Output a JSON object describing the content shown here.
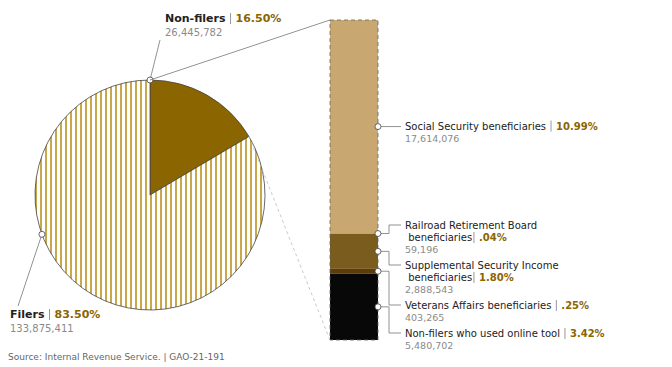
{
  "chart_data": [
    {
      "type": "pie",
      "categories": [
        "Non-filers",
        "Filers"
      ],
      "values": [
        16.5,
        83.5
      ],
      "value_labels": [
        "16.50%",
        "83.50%"
      ],
      "counts": [
        {
          "value": 26445782,
          "label": "26,445,782"
        },
        {
          "value": 133875411,
          "label": "133,875,411"
        }
      ],
      "colors": [
        "#8B6500",
        "#C8A84B"
      ],
      "data_labels": true,
      "source": "Source: Internal Revenue Service. | GAO-21-191"
    },
    {
      "type": "bar",
      "stacked": true,
      "ylim": [
        0,
        16.5
      ],
      "tick_labels": false,
      "data_labels": true,
      "series": [
        {
          "name": "Social Security beneficiaries",
          "color": "#C8A870",
          "values": [
            10.99
          ],
          "value_labels": [
            "10.99%"
          ],
          "counts": [
            {
              "value": 17614076,
              "label": "17,614,076"
            }
          ]
        },
        {
          "name": "Railroad Retirement Board beneficiaries",
          "color": "#B89A50",
          "values": [
            0.04
          ],
          "value_labels": [
            ".04%"
          ],
          "counts": [
            {
              "value": 59196,
              "label": "59,196"
            }
          ]
        },
        {
          "name": "Supplemental Security Income beneficiaries",
          "color": "#7A5C1E",
          "values": [
            1.8
          ],
          "value_labels": [
            "1.80%"
          ],
          "counts": [
            {
              "value": 2888543,
              "label": "2,888,543"
            }
          ]
        },
        {
          "name": "Veterans Affairs beneficiaries",
          "color": "#5C3D0A",
          "values": [
            0.25
          ],
          "value_labels": [
            ".25%"
          ],
          "counts": [
            {
              "value": 403265,
              "label": "403,265"
            }
          ]
        },
        {
          "name": "Non-filers who used online tool",
          "color": "#080808",
          "values": [
            3.42
          ],
          "value_labels": [
            "3.42%"
          ],
          "counts": [
            {
              "value": 5480702,
              "label": "5,480,702"
            }
          ]
        }
      ]
    }
  ]
}
